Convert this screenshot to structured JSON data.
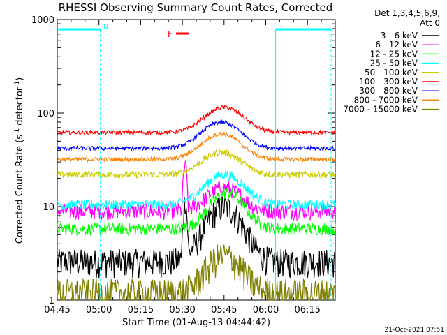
{
  "chart_data": {
    "type": "line",
    "title": "RHESSI Observing Summary Count Rates, Corrected",
    "xlabel": "Start Time (01-Aug-13 04:44:42)",
    "ylabel_main": "Corrected Count Rate (s",
    "ylabel_sup1": "-1",
    "ylabel_mid": " detector",
    "ylabel_sup2": "-1",
    "ylabel_end": ")",
    "y_scale": "log",
    "ylim": [
      1,
      1000
    ],
    "x_range_minutes": [
      0,
      100
    ],
    "x_ticks": [
      {
        "t": 0,
        "label": "04:45"
      },
      {
        "t": 15,
        "label": "05:00"
      },
      {
        "t": 30,
        "label": "05:15"
      },
      {
        "t": 45,
        "label": "05:30"
      },
      {
        "t": 60,
        "label": "05:45"
      },
      {
        "t": 75,
        "label": "06:00"
      },
      {
        "t": 90,
        "label": "06:15"
      }
    ],
    "y_ticks": [
      {
        "v": 1,
        "label": "1"
      },
      {
        "v": 10,
        "label": "10"
      },
      {
        "v": 100,
        "label": "100"
      },
      {
        "v": 1000,
        "label": "1000"
      }
    ],
    "legend_header": [
      "Det 1,3,4,5,6,9,",
      "Att 0"
    ],
    "legend_placement": "right",
    "series": [
      {
        "name": "3 - 6 keV",
        "color": "#000000",
        "base": 2.6,
        "peak": 10,
        "center": 60,
        "width": 8,
        "noise": 0.35,
        "spike": 12,
        "spike_t": 46
      },
      {
        "name": "6 - 12 keV",
        "color": "#ff00ff",
        "base": 9,
        "peak": 16,
        "center": 60,
        "width": 8,
        "noise": 0.2,
        "spike": 27,
        "spike_t": 46
      },
      {
        "name": "12 - 25 keV",
        "color": "#00ff00",
        "base": 5.8,
        "peak": 14,
        "center": 61,
        "width": 8,
        "noise": 0.15
      },
      {
        "name": "25 - 50 keV",
        "color": "#00ffff",
        "base": 10.5,
        "peak": 22,
        "center": 60,
        "width": 9,
        "noise": 0.12
      },
      {
        "name": "50 - 100 keV",
        "color": "#cccc00",
        "base": 22,
        "peak": 38,
        "center": 59,
        "width": 9,
        "noise": 0.08
      },
      {
        "name": "100 - 300 keV",
        "color": "#ff0000",
        "base": 62,
        "peak": 115,
        "center": 60,
        "width": 9,
        "noise": 0.05
      },
      {
        "name": "300 - 800 keV",
        "color": "#0000ff",
        "base": 42,
        "peak": 80,
        "center": 59,
        "width": 9,
        "noise": 0.05
      },
      {
        "name": "800 - 7000 keV",
        "color": "#ff8000",
        "base": 32,
        "peak": 60,
        "center": 59,
        "width": 9,
        "noise": 0.05
      },
      {
        "name": "7000 - 15000 keV",
        "color": "#808000",
        "base": 1.2,
        "peak": 3.0,
        "center": 60,
        "width": 8,
        "noise": 0.4
      }
    ],
    "night_marks": [
      {
        "t": 15.5,
        "label": "N"
      },
      {
        "t": 78.5,
        "label": ""
      },
      {
        "t": 98.5,
        "label": ""
      }
    ],
    "saa_bars": [
      [
        0,
        15.5
      ],
      [
        78.5,
        98.5
      ]
    ],
    "flare_label": "F",
    "footer_date": "21-Oct-2021 07:51"
  }
}
